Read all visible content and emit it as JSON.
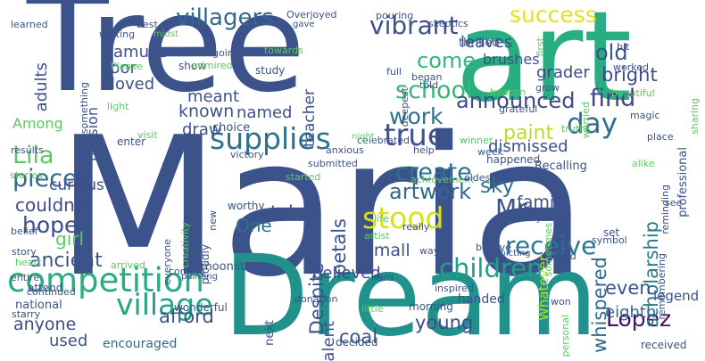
{
  "words": [
    {
      "text": "Maria",
      "color": "#3b528b"
    },
    {
      "text": "Tree",
      "color": "#3b528b"
    },
    {
      "text": "Dream",
      "color": "#21918c"
    },
    {
      "text": "art",
      "color": "#28ae80"
    },
    {
      "text": "competition",
      "color": "#27ad81"
    },
    {
      "text": "supplies",
      "color": "#2c728e"
    },
    {
      "text": "true",
      "color": "#3b528b"
    },
    {
      "text": "village",
      "color": "#21a585"
    },
    {
      "text": "children",
      "color": "#1fa187"
    },
    {
      "text": "stood",
      "color": "#d8e219"
    },
    {
      "text": "receive",
      "color": "#2a788e"
    },
    {
      "text": "artwork",
      "color": "#31688e"
    },
    {
      "text": "create",
      "color": "#2c728e"
    },
    {
      "text": "vibrant",
      "color": "#3b528b"
    },
    {
      "text": "villagers",
      "color": "#31688e"
    },
    {
      "text": "school",
      "color": "#35b779"
    },
    {
      "text": "success",
      "color": "#e1e31d"
    },
    {
      "text": "announced",
      "color": "#3e4a89"
    },
    {
      "text": "day",
      "color": "#2e6e8e"
    },
    {
      "text": "work",
      "color": "#2c728e"
    },
    {
      "text": "paint",
      "color": "#bade28"
    },
    {
      "text": "find",
      "color": "#414487"
    },
    {
      "text": "Lila",
      "color": "#5ec962"
    },
    {
      "text": "piece",
      "color": "#31688e"
    },
    {
      "text": "hope",
      "color": "#3e4a89"
    },
    {
      "text": "ancient",
      "color": "#3b528b"
    },
    {
      "text": "Lopez",
      "color": "#471164"
    },
    {
      "text": "scholarship",
      "color": "#2a788e"
    },
    {
      "text": "whispered",
      "color": "#31688e"
    },
    {
      "text": "Mr",
      "color": "#3b528b"
    },
    {
      "text": "come",
      "color": "#35b779"
    },
    {
      "text": "bright",
      "color": "#3e4a89"
    },
    {
      "text": "old",
      "color": "#3b528b"
    },
    {
      "text": "grader",
      "color": "#3e4a89"
    },
    {
      "text": "dismissed",
      "color": "#3b528b"
    },
    {
      "text": "sky",
      "color": "#2c728e"
    },
    {
      "text": "family",
      "color": "#3b528b"
    },
    {
      "text": "Despite",
      "color": "#3b528b"
    },
    {
      "text": "petals",
      "color": "#3b528b"
    },
    {
      "text": "believed",
      "color": "#3e4a89"
    },
    {
      "text": "small",
      "color": "#3b528b"
    },
    {
      "text": "even",
      "color": "#3b528b"
    },
    {
      "text": "eighth",
      "color": "#31688e"
    },
    {
      "text": "afford",
      "color": "#3b528b"
    },
    {
      "text": "young",
      "color": "#3e4a89"
    },
    {
      "text": "coal",
      "color": "#3b528b"
    },
    {
      "text": "talent",
      "color": "#3b528b"
    },
    {
      "text": "anyone",
      "color": "#3e4a89"
    },
    {
      "text": "used",
      "color": "#3b528b"
    },
    {
      "text": "encouraged",
      "color": "#31688e"
    },
    {
      "text": "girl",
      "color": "#5ec962"
    },
    {
      "text": "couldnt",
      "color": "#3e4a89"
    },
    {
      "text": "curious",
      "color": "#3e4a89"
    },
    {
      "text": "One",
      "color": "#2c728e"
    },
    {
      "text": "tale",
      "color": "#3b528b"
    },
    {
      "text": "known",
      "color": "#3b528b"
    },
    {
      "text": "named",
      "color": "#3b528b"
    },
    {
      "text": "draw",
      "color": "#3b528b"
    },
    {
      "text": "meant",
      "color": "#3b528b"
    },
    {
      "text": "loved",
      "color": "#3b528b"
    },
    {
      "text": "poor",
      "color": "#3b528b"
    },
    {
      "text": "amuse",
      "color": "#3b528b"
    },
    {
      "text": "passion",
      "color": "#3b528b"
    },
    {
      "text": "adults",
      "color": "#3b528b"
    },
    {
      "text": "Among",
      "color": "#5ec962"
    },
    {
      "text": "teacher",
      "color": "#3b528b"
    },
    {
      "text": "leaves",
      "color": "#3b528b"
    },
    {
      "text": "brushes",
      "color": "#3b528b"
    },
    {
      "text": "thrilled",
      "color": "#3b528b"
    },
    {
      "text": "noticed",
      "color": "#3b528b"
    },
    {
      "text": "Whatever",
      "color": "#bade28"
    },
    {
      "text": "legend",
      "color": "#3b528b"
    },
    {
      "text": "handed",
      "color": "#3b528b"
    },
    {
      "text": "wonderful",
      "color": "#3b528b"
    },
    {
      "text": "moonlit",
      "color": "#3b528b"
    },
    {
      "text": "national",
      "color": "#3b528b"
    },
    {
      "text": "attend",
      "color": "#3b528b"
    },
    {
      "text": "next",
      "color": "#3b528b"
    },
    {
      "text": "morning",
      "color": "#3b528b"
    },
    {
      "text": "decided",
      "color": "#3b528b"
    },
    {
      "text": "received",
      "color": "#3b528b"
    },
    {
      "text": "worthy",
      "color": "#3b528b"
    },
    {
      "text": "happened",
      "color": "#3b528b"
    },
    {
      "text": "Recalling",
      "color": "#3b528b"
    },
    {
      "text": "set",
      "color": "#3b528b"
    },
    {
      "text": "winner",
      "color": "#5ec962"
    },
    {
      "text": "help",
      "color": "#3b528b"
    },
    {
      "text": "way",
      "color": "#3b528b"
    },
    {
      "text": "visit",
      "color": "#5ec962"
    },
    {
      "text": "choice",
      "color": "#3b528b"
    },
    {
      "text": "enter",
      "color": "#3b528b"
    },
    {
      "text": "show",
      "color": "#3b528b"
    },
    {
      "text": "study",
      "color": "#3b528b"
    },
    {
      "text": "best",
      "color": "#3b528b"
    },
    {
      "text": "learned",
      "color": "#3b528b"
    },
    {
      "text": "something",
      "color": "#3b528b"
    },
    {
      "text": "Please",
      "color": "#5ec962"
    },
    {
      "text": "waiting",
      "color": "#3b528b"
    },
    {
      "text": "going",
      "color": "#3b528b"
    },
    {
      "text": "admired",
      "color": "#5ec962"
    },
    {
      "text": "towards",
      "color": "#5ec962"
    },
    {
      "text": "Overjoyed",
      "color": "#3b528b"
    },
    {
      "text": "gave",
      "color": "#3b528b"
    },
    {
      "text": "midst",
      "color": "#5ec962"
    },
    {
      "text": "pouring",
      "color": "#3b528b"
    },
    {
      "text": "deepest",
      "color": "#3b528b"
    },
    {
      "text": "full",
      "color": "#3b528b"
    },
    {
      "text": "skeptics",
      "color": "#3b528b"
    },
    {
      "text": "first",
      "color": "#5ec962"
    },
    {
      "text": "bit",
      "color": "#3b528b"
    },
    {
      "text": "worked",
      "color": "#3b528b"
    },
    {
      "text": "worried",
      "color": "#5ec962"
    },
    {
      "text": "grow",
      "color": "#3b528b"
    },
    {
      "text": "began",
      "color": "#3b528b"
    },
    {
      "text": "told",
      "color": "#3b528b"
    },
    {
      "text": "beacon",
      "color": "#5ec962"
    },
    {
      "text": "beautiful",
      "color": "#5ec962"
    },
    {
      "text": "sharing",
      "color": "#5ec962"
    },
    {
      "text": "professional",
      "color": "#3b528b"
    },
    {
      "text": "magic",
      "color": "#3b528b"
    },
    {
      "text": "grateful",
      "color": "#3b528b"
    },
    {
      "text": "truths",
      "color": "#5ec962"
    },
    {
      "text": "place",
      "color": "#3b528b"
    },
    {
      "text": "reminding",
      "color": "#3b528b"
    },
    {
      "text": "alike",
      "color": "#5ec962"
    },
    {
      "text": "see",
      "color": "#3b528b"
    },
    {
      "text": "light",
      "color": "#5ec962"
    },
    {
      "text": "results",
      "color": "#3b528b"
    },
    {
      "text": "anxious",
      "color": "#3b528b"
    },
    {
      "text": "celebrated",
      "color": "#3b528b"
    },
    {
      "text": "night",
      "color": "#5ec962"
    },
    {
      "text": "achievement",
      "color": "#5ec962"
    },
    {
      "text": "oldest",
      "color": "#3b528b"
    },
    {
      "text": "week",
      "color": "#3b528b"
    },
    {
      "text": "victory",
      "color": "#3b528b"
    },
    {
      "text": "whole",
      "color": "#3b528b"
    },
    {
      "text": "stories",
      "color": "#5ec962"
    },
    {
      "text": "started",
      "color": "#5ec962"
    },
    {
      "text": "submitted",
      "color": "#3b528b"
    },
    {
      "text": "creativity",
      "color": "#5ec962"
    },
    {
      "text": "new",
      "color": "#3b528b"
    },
    {
      "text": "everyone",
      "color": "#3b528b"
    },
    {
      "text": "proudly",
      "color": "#3b528b"
    },
    {
      "text": "belief",
      "color": "#3b528b"
    },
    {
      "text": "story",
      "color": "#3b528b"
    },
    {
      "text": "heart",
      "color": "#5ec962"
    },
    {
      "text": "entire",
      "color": "#3b528b"
    },
    {
      "text": "arrived",
      "color": "#5ec962"
    },
    {
      "text": "coming",
      "color": "#3b528b"
    },
    {
      "text": "painting",
      "color": "#3b528b"
    },
    {
      "text": "continued",
      "color": "#3b528b"
    },
    {
      "text": "starry",
      "color": "#3b528b"
    },
    {
      "text": "life",
      "color": "#5ec962"
    },
    {
      "text": "artist",
      "color": "#5ec962"
    },
    {
      "text": "really",
      "color": "#3b528b"
    },
    {
      "text": "believe",
      "color": "#3b528b"
    },
    {
      "text": "always",
      "color": "#3b528b"
    },
    {
      "text": "depicting",
      "color": "#3b528b"
    },
    {
      "text": "sometimes",
      "color": "#5ec962"
    },
    {
      "text": "symbol",
      "color": "#3b528b"
    },
    {
      "text": "remembering",
      "color": "#3b528b"
    },
    {
      "text": "hold",
      "color": "#3b528b"
    },
    {
      "text": "donation",
      "color": "#3b528b"
    },
    {
      "text": "hard",
      "color": "#3b528b"
    },
    {
      "text": "little",
      "color": "#5ec962"
    },
    {
      "text": "inspired",
      "color": "#3b528b"
    },
    {
      "text": "won",
      "color": "#3b528b"
    },
    {
      "text": "personal",
      "color": "#5ec962"
    }
  ]
}
